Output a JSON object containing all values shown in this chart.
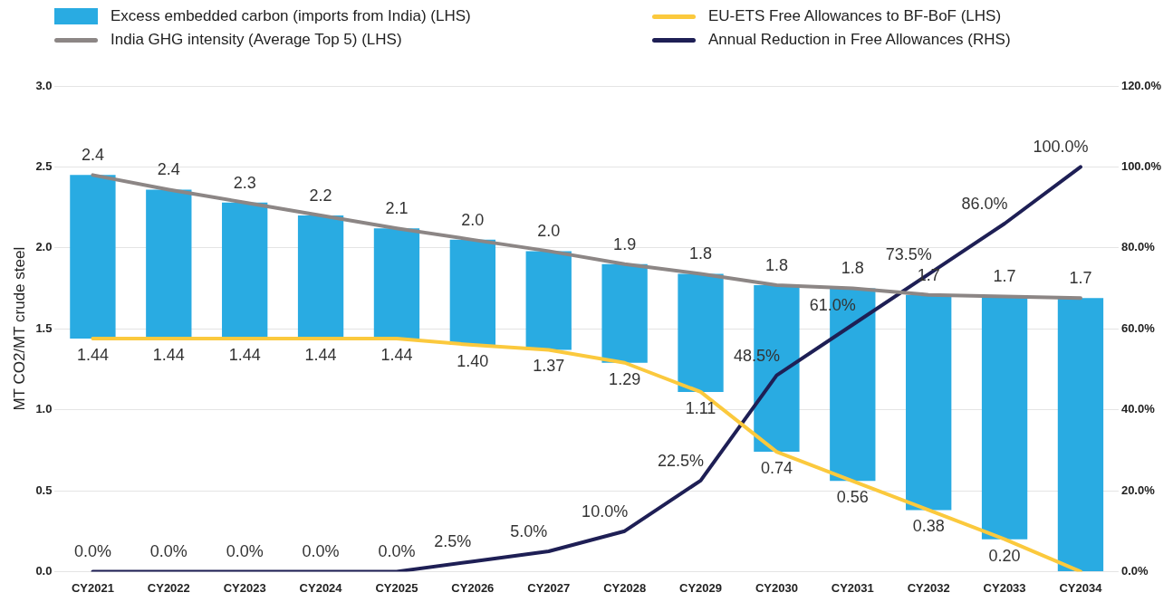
{
  "chart_data": {
    "type": "bar",
    "categories": [
      "CY2021",
      "CY2022",
      "CY2023",
      "CY2024",
      "CY2025",
      "CY2026",
      "CY2027",
      "CY2028",
      "CY2029",
      "CY2030",
      "CY2031",
      "CY2032",
      "CY2033",
      "CY2034"
    ],
    "ylabel": "MT CO2/MT crude steel",
    "ylim": [
      0,
      3
    ],
    "yticks": [
      {
        "value": 0,
        "label": "0.0"
      },
      {
        "value": 0.5,
        "label": "0.5"
      },
      {
        "value": 1,
        "label": "1.0"
      },
      {
        "value": 1.5,
        "label": "1.5"
      },
      {
        "value": 2,
        "label": "2.0"
      },
      {
        "value": 2.5,
        "label": "2.5"
      },
      {
        "value": 3,
        "label": "3.0"
      }
    ],
    "y2lim": [
      0,
      120
    ],
    "y2ticks": [
      {
        "value": 0,
        "label": "0.0%"
      },
      {
        "value": 20,
        "label": "20.0%"
      },
      {
        "value": 40,
        "label": "40.0%"
      },
      {
        "value": 60,
        "label": "60.0%"
      },
      {
        "value": 80,
        "label": "80.0%"
      },
      {
        "value": 100,
        "label": "100.0%"
      },
      {
        "value": 120,
        "label": "120.0%"
      }
    ],
    "grid": "y",
    "legend": "top",
    "marker": "none",
    "series": [
      {
        "name": "Excess embedded carbon (imports from India) (LHS)",
        "color": "#29abe2",
        "base": [
          1.44,
          1.44,
          1.44,
          1.44,
          1.44,
          1.4,
          1.37,
          1.29,
          1.11,
          0.74,
          0.56,
          0.38,
          0.2,
          0
        ],
        "values": [
          1.01,
          0.92,
          0.84,
          0.76,
          0.68,
          0.65,
          0.61,
          0.61,
          0.73,
          1.03,
          1.19,
          1.33,
          1.5,
          1.69
        ]
      },
      {
        "name": "India GHG intensity (Average Top 5) (LHS)",
        "type": "line",
        "color": "#8c8685",
        "values": [
          2.45,
          2.36,
          2.28,
          2.2,
          2.12,
          2.05,
          1.98,
          1.9,
          1.84,
          1.77,
          1.75,
          1.71,
          1.7,
          1.69
        ],
        "value_labels": [
          "2.4",
          "2.4",
          "2.3",
          "2.2",
          "2.1",
          "2.0",
          "2.0",
          "1.9",
          "1.8",
          "1.8",
          "1.8",
          "1.7",
          "1.7",
          "1.7"
        ]
      },
      {
        "name": "EU-ETS Free Allowances to BF-BoF (LHS)",
        "type": "line",
        "color": "#fbc93d",
        "values": [
          1.44,
          1.44,
          1.44,
          1.44,
          1.44,
          1.4,
          1.37,
          1.29,
          1.11,
          0.74,
          0.56,
          0.38,
          0.2,
          0
        ],
        "value_labels": [
          "1.44",
          "1.44",
          "1.44",
          "1.44",
          "1.44",
          "1.40",
          "1.37",
          "1.29",
          "1.11",
          "0.74",
          "0.56",
          "0.38",
          "0.20",
          null
        ]
      },
      {
        "name": "Annual Reduction in Free Allowances (RHS)",
        "type": "line",
        "axis": "y2",
        "color": "#1e1f55",
        "values": [
          0,
          0,
          0,
          0,
          0,
          2.5,
          5,
          10,
          22.5,
          48.5,
          61,
          73.5,
          86,
          100
        ],
        "value_labels": [
          "0.0%",
          "0.0%",
          "0.0%",
          "0.0%",
          "0.0%",
          "2.5%",
          "5.0%",
          "10.0%",
          "22.5%",
          "48.5%",
          "61.0%",
          "73.5%",
          "86.0%",
          "100.0%"
        ]
      }
    ]
  }
}
